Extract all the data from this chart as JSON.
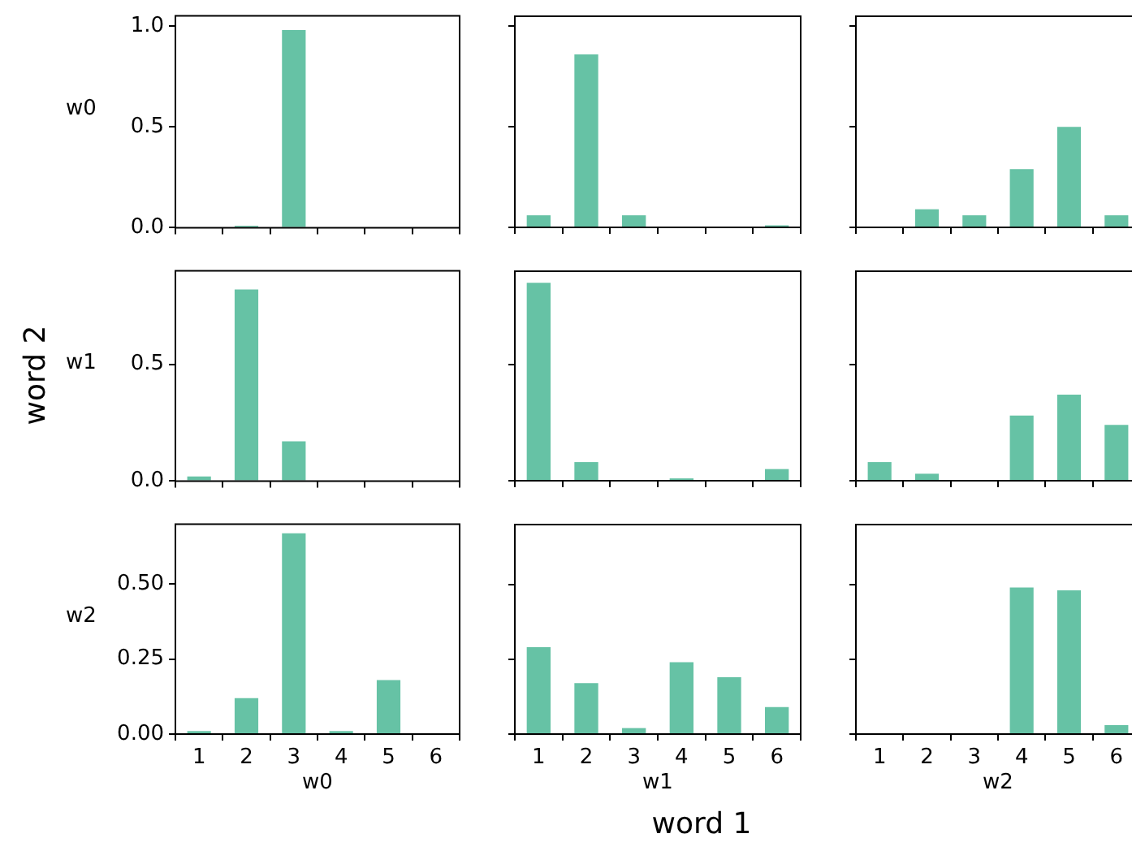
{
  "chart_data": [
    {
      "type": "bar",
      "categories": [
        "1",
        "2",
        "3",
        "4",
        "5",
        "6"
      ],
      "values": [
        0,
        0.01,
        0.98,
        0,
        0,
        0
      ],
      "color": "#66c2a5",
      "ylabel": "w0",
      "ylim": [
        0,
        1.05
      ],
      "yticks": [
        {
          "value": 0,
          "label": "0.0"
        },
        {
          "value": 0.5,
          "label": "0.5"
        },
        {
          "value": 1,
          "label": "1.0"
        }
      ],
      "tick_labels": "y"
    },
    {
      "type": "bar",
      "categories": [
        "1",
        "2",
        "3",
        "4",
        "5",
        "6"
      ],
      "values": [
        0.06,
        0.86,
        0.06,
        0,
        0,
        0.01
      ],
      "color": "#66c2a5",
      "ylim": [
        0,
        1.05
      ],
      "yticks": [
        0,
        0.5,
        1
      ],
      "tick_labels": false
    },
    {
      "type": "bar",
      "categories": [
        "1",
        "2",
        "3",
        "4",
        "5",
        "6"
      ],
      "values": [
        0,
        0.09,
        0.06,
        0.29,
        0.5,
        0.06
      ],
      "color": "#66c2a5",
      "ylim": [
        0,
        1.05
      ],
      "yticks": [
        0,
        0.5,
        1
      ],
      "tick_labels": false
    },
    {
      "type": "bar",
      "categories": [
        "1",
        "2",
        "3",
        "4",
        "5",
        "6"
      ],
      "values": [
        0.02,
        0.82,
        0.17,
        0,
        0,
        0
      ],
      "color": "#66c2a5",
      "ylabel": "w1",
      "ylim": [
        0,
        0.9
      ],
      "yticks": [
        {
          "value": 0,
          "label": "0.0"
        },
        {
          "value": 0.5,
          "label": "0.5"
        }
      ],
      "tick_labels": "y",
      "annotations": [
        "word 2"
      ]
    },
    {
      "type": "bar",
      "categories": [
        "1",
        "2",
        "3",
        "4",
        "5",
        "6"
      ],
      "values": [
        0.85,
        0.08,
        0,
        0.01,
        0,
        0.05
      ],
      "color": "#66c2a5",
      "ylim": [
        0,
        0.9
      ],
      "yticks": [
        0,
        0.5
      ],
      "tick_labels": false
    },
    {
      "type": "bar",
      "categories": [
        "1",
        "2",
        "3",
        "4",
        "5",
        "6"
      ],
      "values": [
        0.08,
        0.03,
        0,
        0.28,
        0.37,
        0.24
      ],
      "color": "#66c2a5",
      "ylim": [
        0,
        0.9
      ],
      "yticks": [
        0,
        0.5
      ],
      "tick_labels": false
    },
    {
      "type": "bar",
      "categories": [
        "1",
        "2",
        "3",
        "4",
        "5",
        "6"
      ],
      "values": [
        0.01,
        0.12,
        0.67,
        0.01,
        0.18,
        0
      ],
      "color": "#66c2a5",
      "xlabel": "w0",
      "ylabel": "w2",
      "ylim": [
        0,
        0.7
      ],
      "yticks": [
        {
          "value": 0,
          "label": "0.00"
        },
        {
          "value": 0.25,
          "label": "0.25"
        },
        {
          "value": 0.5,
          "label": "0.50"
        }
      ]
    },
    {
      "type": "bar",
      "categories": [
        "1",
        "2",
        "3",
        "4",
        "5",
        "6"
      ],
      "values": [
        0.29,
        0.17,
        0.02,
        0.24,
        0.19,
        0.09
      ],
      "color": "#66c2a5",
      "xlabel": "w1",
      "ylim": [
        0,
        0.7
      ],
      "yticks": [
        0,
        0.25,
        0.5
      ],
      "tick_labels": "x",
      "annotations": [
        "word 1"
      ]
    },
    {
      "type": "bar",
      "categories": [
        "1",
        "2",
        "3",
        "4",
        "5",
        "6"
      ],
      "values": [
        0,
        0,
        0,
        0.49,
        0.48,
        0.03
      ],
      "color": "#66c2a5",
      "xlabel": "w2",
      "ylim": [
        0,
        0.7
      ],
      "yticks": [
        0,
        0.25,
        0.5
      ],
      "tick_labels": "x"
    }
  ]
}
